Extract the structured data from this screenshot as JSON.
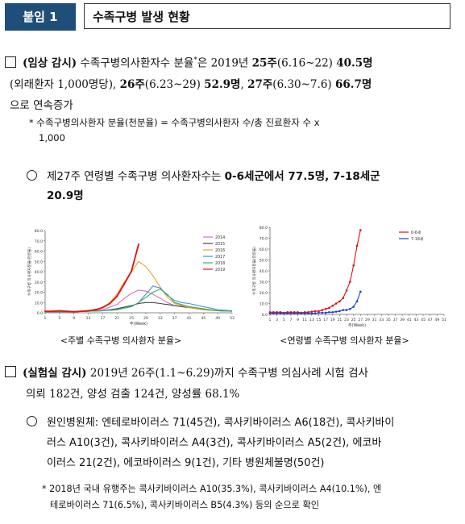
{
  "header": {
    "badge": "붙임 1",
    "title": "수족구병 발생 현황"
  },
  "clinical": {
    "heading": "(임상 감시)",
    "t1": " 수족구병의사환자수 분율",
    "t1sup": "*",
    "t2": "은 2019년 ",
    "w25": "25주",
    "r25": "(6.16~22) ",
    "v25": "40.5명",
    "line2a": "(외래환자 1,000명당), ",
    "w26": "26주",
    "r26": "(6.23~29) ",
    "v26": "52.9명",
    "sep": ", ",
    "w27": "27주",
    "r27": "(6.30~7.6) ",
    "v27": "66.7명",
    "line3": "으로 연속증가",
    "note1": "* 수족구병의사환자 분율(천분율) = 수족구병의사환자 수/총 진료환자 수 x",
    "note2": "1,000",
    "bullet_a": "제27주 연령별 수족구병 의사환자수는 ",
    "bullet_b": "0-6세군에서 77.5명, 7-18세군",
    "bullet_c": "20.9명"
  },
  "chart_data": [
    {
      "type": "line",
      "xlabel": "주(Week)",
      "ylabel": "수족구병 의사환자분율(천분율)",
      "ylim": [
        0,
        80
      ],
      "yticks": [
        "0.0",
        "10.0",
        "20.0",
        "30.0",
        "40.0",
        "50.0",
        "60.0",
        "70.0",
        "80.0"
      ],
      "xticks": [
        "1",
        "5",
        "9",
        "13",
        "17",
        "21",
        "25",
        "29",
        "33",
        "37",
        "41",
        "45",
        "49",
        "53"
      ],
      "legend_position": "top-right",
      "series": [
        {
          "name": "2014",
          "color": "#d070c0",
          "x": [
            1,
            5,
            9,
            13,
            17,
            21,
            23,
            25,
            27,
            29,
            31,
            33,
            35,
            37,
            41,
            45,
            49,
            53
          ],
          "values": [
            1,
            1,
            1,
            1.5,
            3,
            8,
            14,
            19,
            22,
            21,
            18,
            14,
            10,
            7,
            5,
            3,
            2,
            1.5
          ]
        },
        {
          "name": "2015",
          "color": "#444444",
          "x": [
            1,
            5,
            9,
            13,
            17,
            21,
            25,
            27,
            29,
            31,
            33,
            35,
            37,
            41,
            45,
            49,
            53
          ],
          "values": [
            1,
            1,
            1,
            1.5,
            2,
            4,
            7,
            9,
            10,
            10,
            9,
            8,
            7,
            5,
            3,
            2,
            1.5
          ]
        },
        {
          "name": "2016",
          "color": "#f0a030",
          "x": [
            1,
            5,
            9,
            13,
            17,
            19,
            21,
            23,
            25,
            27,
            29,
            31,
            33,
            35,
            37,
            41,
            45,
            49,
            53
          ],
          "values": [
            1,
            1,
            1,
            2,
            5,
            10,
            18,
            30,
            40,
            50,
            45,
            36,
            25,
            15,
            9,
            5,
            3,
            2,
            1.5
          ]
        },
        {
          "name": "2017",
          "color": "#4a90d0",
          "x": [
            1,
            5,
            9,
            13,
            17,
            21,
            25,
            27,
            29,
            31,
            33,
            35,
            37,
            39,
            41,
            45,
            49,
            53
          ],
          "values": [
            1,
            1,
            1,
            1.5,
            2,
            3,
            6,
            10,
            18,
            26,
            24,
            17,
            12,
            10,
            9,
            6,
            3,
            2
          ]
        },
        {
          "name": "2018",
          "color": "#30b060",
          "x": [
            1,
            5,
            9,
            13,
            17,
            21,
            25,
            27,
            29,
            31,
            33,
            35,
            37,
            39,
            41,
            45,
            49,
            53
          ],
          "values": [
            1,
            1,
            1,
            1.5,
            2,
            3,
            6,
            10,
            15,
            20,
            23,
            18,
            10,
            8,
            6,
            4,
            2,
            1.5
          ]
        },
        {
          "name": "2019",
          "color": "#e01010",
          "x": [
            1,
            3,
            5,
            7,
            9,
            11,
            13,
            15,
            17,
            19,
            21,
            23,
            25,
            27
          ],
          "values": [
            1.5,
            1.5,
            2,
            1.5,
            1,
            1.5,
            2,
            3,
            5,
            9,
            16,
            28,
            40.5,
            66.7
          ]
        }
      ]
    },
    {
      "type": "line",
      "xlabel": "주(Week)",
      "ylabel": "수족구병 의사환자분율(천분율)",
      "ylim": [
        0,
        80
      ],
      "yticks": [
        "0.0",
        "10.0",
        "20.0",
        "30.0",
        "40.0",
        "50.0",
        "60.0",
        "70.0",
        "80.0"
      ],
      "xticks": [
        "1",
        "3",
        "5",
        "7",
        "9",
        "11",
        "13",
        "15",
        "17",
        "19",
        "21",
        "23",
        "25",
        "27",
        "29",
        "31",
        "33",
        "35",
        "37",
        "39",
        "41",
        "43",
        "45",
        "47",
        "49",
        "51"
      ],
      "legend_position": "top-right",
      "series": [
        {
          "name": "0-6세",
          "color": "#e01010",
          "x": [
            1,
            2,
            3,
            4,
            5,
            6,
            7,
            8,
            9,
            10,
            11,
            12,
            13,
            14,
            15,
            16,
            17,
            18,
            19,
            20,
            21,
            22,
            23,
            24,
            25,
            26,
            27
          ],
          "values": [
            2,
            2,
            2,
            2,
            1.5,
            2,
            2,
            2,
            2,
            1.5,
            2,
            2,
            2.5,
            3,
            3,
            4,
            5,
            6,
            8,
            10,
            12,
            15,
            22,
            30,
            45,
            63,
            77.5
          ]
        },
        {
          "name": "7-18세",
          "color": "#1a3fd0",
          "x": [
            1,
            2,
            3,
            4,
            5,
            6,
            7,
            8,
            9,
            10,
            11,
            12,
            13,
            14,
            15,
            16,
            17,
            18,
            19,
            20,
            21,
            22,
            23,
            24,
            25,
            26,
            27
          ],
          "values": [
            1,
            1,
            1,
            1,
            1,
            1,
            1,
            1,
            1,
            1,
            1,
            1,
            1,
            1,
            1.5,
            1.5,
            1.5,
            2,
            2,
            2.5,
            3,
            4,
            4,
            5,
            7,
            12,
            20.9
          ]
        }
      ]
    }
  ],
  "captions": {
    "left": "<주별 수족구병 의사환자 분율>",
    "right": "<연령별 수족구병 의사환자 분율>"
  },
  "lab": {
    "heading": "(실험실 감시)",
    "t1": " 2019년 26주(1.1~6.29)까지 수족구병 의심사례 시험 검사",
    "line2": "의뢰 182건, 양성 검출 124건, 양성률 68.1%",
    "p1": "원인병원체: 엔테로바이러스 71(45건), 콕사키바이러스 A6(18건), 콕사키바이",
    "p2": "러스 A10(3건), 콕사키바이러스 A4(3건), 콕사키바이러스 A5(2건), 에코바",
    "p3": "이러스 21(2건), 에코바이러스 9(1건), 기타 병원체불명(50건)",
    "n1": "* 2018년 국내 유행주는 콕사키바이러스 A10(35.3%), 콕사키바이러스 A4(10.1%), 엔",
    "n2": "테로바이러스 71(6.5%), 콕사키바이러스 B5(4.3%) 등의 순으로 확인"
  }
}
